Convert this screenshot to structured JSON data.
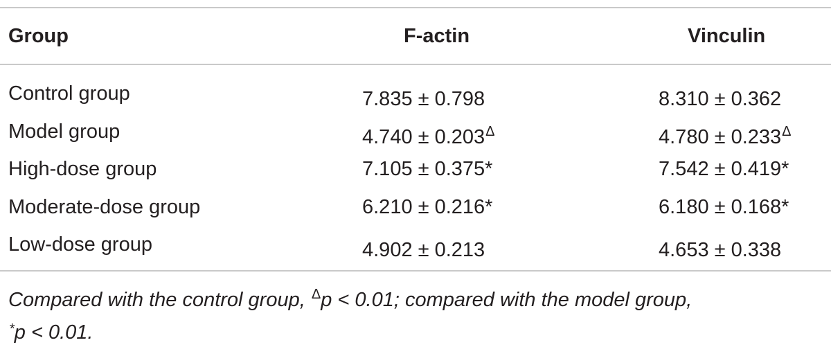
{
  "table": {
    "headers": {
      "group": "Group",
      "f_actin": "F-actin",
      "vinculin": "Vinculin"
    },
    "rows": [
      {
        "group": "Control group",
        "f_actin": "7.835 ± 0.798",
        "f_actin_mark": "",
        "vinculin": "8.310 ± 0.362",
        "vinculin_mark": ""
      },
      {
        "group": "Model group",
        "f_actin": "4.740 ± 0.203",
        "f_actin_mark": "Δ",
        "vinculin": "4.780 ± 0.233",
        "vinculin_mark": "Δ"
      },
      {
        "group": "High-dose group",
        "f_actin": "7.105 ± 0.375",
        "f_actin_mark": "*",
        "vinculin": "7.542 ± 0.419",
        "vinculin_mark": "*"
      },
      {
        "group": "Moderate-dose group",
        "f_actin": "6.210 ± 0.216",
        "f_actin_mark": "*",
        "vinculin": "6.180 ± 0.168",
        "vinculin_mark": "*"
      },
      {
        "group": "Low-dose group",
        "f_actin": "4.902 ± 0.213",
        "f_actin_mark": "",
        "vinculin": "4.653 ± 0.338",
        "vinculin_mark": ""
      }
    ],
    "footnote": {
      "line1_pre": "Compared with the control group, ",
      "delta_mark": "Δ",
      "line1_post": "p < 0.01; compared with the model group,",
      "star_mark": "*",
      "line2_post": "p < 0.01."
    }
  }
}
